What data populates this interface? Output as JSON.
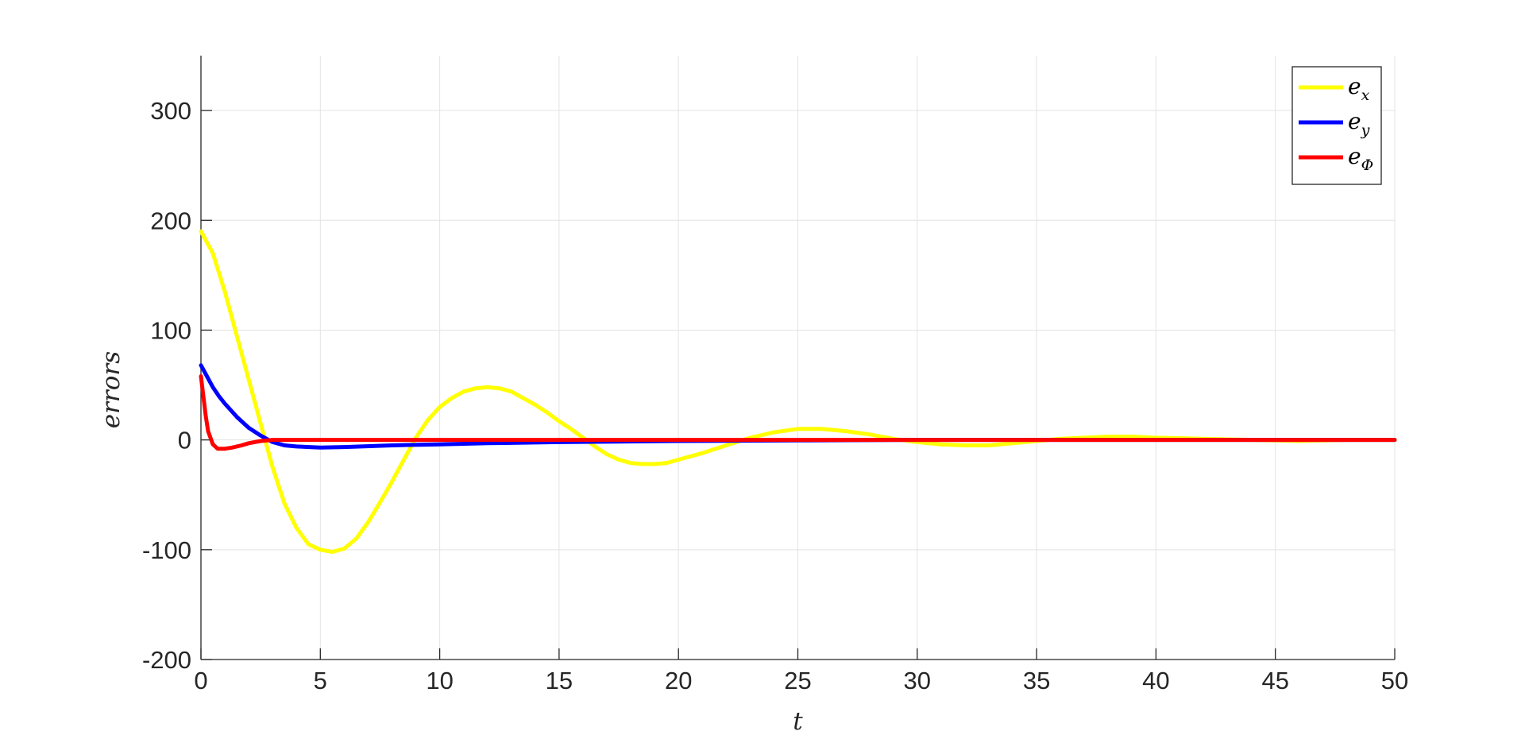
{
  "chart_data": {
    "type": "line",
    "xlabel": "t",
    "ylabel": "errors",
    "xlim": [
      0,
      50
    ],
    "ylim": [
      -200,
      350
    ],
    "xticks": [
      0,
      5,
      10,
      15,
      20,
      25,
      30,
      35,
      40,
      45,
      50
    ],
    "yticks": [
      -200,
      -100,
      0,
      100,
      200,
      300
    ],
    "grid": true,
    "legend_position": "top-right",
    "series": [
      {
        "name": "e_x",
        "label_main": "e",
        "label_sub": "x",
        "color": "#ffff00",
        "x": [
          0,
          0.5,
          1,
          1.5,
          2,
          2.5,
          3,
          3.5,
          4,
          4.5,
          5,
          5.5,
          6,
          6.5,
          7,
          7.5,
          8,
          8.5,
          9,
          9.5,
          10,
          10.5,
          11,
          11.5,
          12,
          12.5,
          13,
          13.5,
          14,
          14.5,
          15,
          15.5,
          16,
          16.5,
          17,
          17.5,
          18,
          18.5,
          19,
          19.5,
          20,
          21,
          22,
          23,
          24,
          25,
          25.5,
          26,
          27,
          28,
          29,
          30,
          31,
          32,
          33,
          34,
          35,
          36,
          37,
          38,
          39,
          40,
          42,
          44,
          46,
          48,
          50
        ],
        "y": [
          190,
          170,
          135,
          95,
          55,
          15,
          -25,
          -58,
          -80,
          -95,
          -100,
          -102,
          -99,
          -90,
          -75,
          -57,
          -38,
          -18,
          2,
          18,
          30,
          38,
          44,
          47,
          48,
          47,
          44,
          38,
          32,
          25,
          17,
          10,
          2,
          -6,
          -13,
          -18,
          -21,
          -22,
          -22,
          -21,
          -18,
          -12,
          -5,
          2,
          7,
          10,
          10,
          10,
          8,
          5,
          1,
          -2,
          -4,
          -5,
          -5,
          -3,
          -1,
          1,
          2,
          3,
          3,
          2,
          1,
          0,
          -1,
          0,
          0
        ]
      },
      {
        "name": "e_y",
        "label_main": "e",
        "label_sub": "y",
        "color": "#0000ff",
        "x": [
          0,
          0.25,
          0.5,
          0.75,
          1,
          1.5,
          2,
          2.5,
          3,
          3.5,
          4,
          5,
          6,
          8,
          10,
          12,
          15,
          20,
          25,
          30,
          40,
          50
        ],
        "y": [
          68,
          58,
          48,
          40,
          33,
          21,
          11,
          4,
          -2,
          -5,
          -6,
          -7,
          -6.5,
          -5,
          -4,
          -3,
          -2,
          -1,
          -0.5,
          0,
          0,
          0
        ]
      },
      {
        "name": "e_Φ",
        "label_main": "e",
        "label_sub": "Φ",
        "color": "#ff0000",
        "x": [
          0,
          0.1,
          0.2,
          0.3,
          0.5,
          0.7,
          1,
          1.3,
          1.7,
          2,
          2.5,
          3,
          4,
          5,
          10,
          20,
          30,
          40,
          50
        ],
        "y": [
          58,
          40,
          22,
          8,
          -4,
          -8,
          -8,
          -7,
          -5,
          -3,
          -1,
          0,
          0,
          0,
          0,
          0,
          0,
          0,
          0
        ]
      }
    ]
  }
}
